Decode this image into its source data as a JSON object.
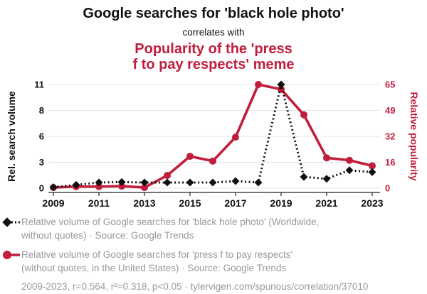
{
  "header": {
    "title": "Google searches for 'black hole photo'",
    "connector": "correlates with",
    "subtitle_line1": "Popularity of the 'press",
    "subtitle_line2": "f to pay respects' meme"
  },
  "colors": {
    "black_series": "#111111",
    "red_series": "#c01e3c",
    "grid": "#e3e3e3",
    "axis": "#222222",
    "legend_text": "#999999"
  },
  "chart_data": {
    "type": "line",
    "title": "Google searches for 'black hole photo' correlates with Popularity of the 'press f to pay respects' meme",
    "x": [
      2009,
      2010,
      2011,
      2012,
      2013,
      2014,
      2015,
      2016,
      2017,
      2018,
      2019,
      2020,
      2021,
      2022,
      2023
    ],
    "x_tick_labels": [
      "2009",
      "2011",
      "2013",
      "2015",
      "2017",
      "2019",
      "2021",
      "2023"
    ],
    "grid": true,
    "legend_position": "bottom",
    "left_axis": {
      "label": "Rel. search volume",
      "tick_labels": [
        "0",
        "3",
        "6",
        "8",
        "11"
      ],
      "range": [
        0,
        11
      ],
      "color": "#111111"
    },
    "right_axis": {
      "label": "Relative popularity",
      "tick_labels": [
        "0",
        "16",
        "32",
        "49",
        "65"
      ],
      "range": [
        0,
        65
      ],
      "color": "#c01e3c"
    },
    "series": [
      {
        "name": "black hole photo (Google searches, left axis)",
        "axis": "left",
        "color": "#111111",
        "marker": "diamond",
        "line_style": "dotted",
        "values": [
          0.1,
          0.35,
          0.6,
          0.65,
          0.6,
          0.6,
          0.6,
          0.6,
          0.75,
          0.6,
          11,
          1.2,
          1.0,
          1.9,
          1.7
        ]
      },
      {
        "name": "press f to pay respects meme (right axis)",
        "axis": "right",
        "color": "#c01e3c",
        "marker": "circle",
        "line_style": "solid",
        "values": [
          0.4,
          1,
          1,
          1.3,
          0.4,
          8,
          20,
          17,
          32,
          65,
          62,
          46,
          19,
          17.5,
          14
        ]
      }
    ]
  },
  "legend": {
    "items": [
      {
        "line1": "Relative volume of Google searches for 'black hole photo' (Worldwide,",
        "line2": "without quotes) · Source: Google Trends"
      },
      {
        "line1": "Relative volume of Google searches for 'press f to pay respects'",
        "line2": "(without quotes, in the United States) · Source: Google Trends"
      }
    ],
    "footer": "2009-2023, r=0.564, r²=0.318, p<0.05 · tylervigen.com/spurious/correlation/37010"
  }
}
